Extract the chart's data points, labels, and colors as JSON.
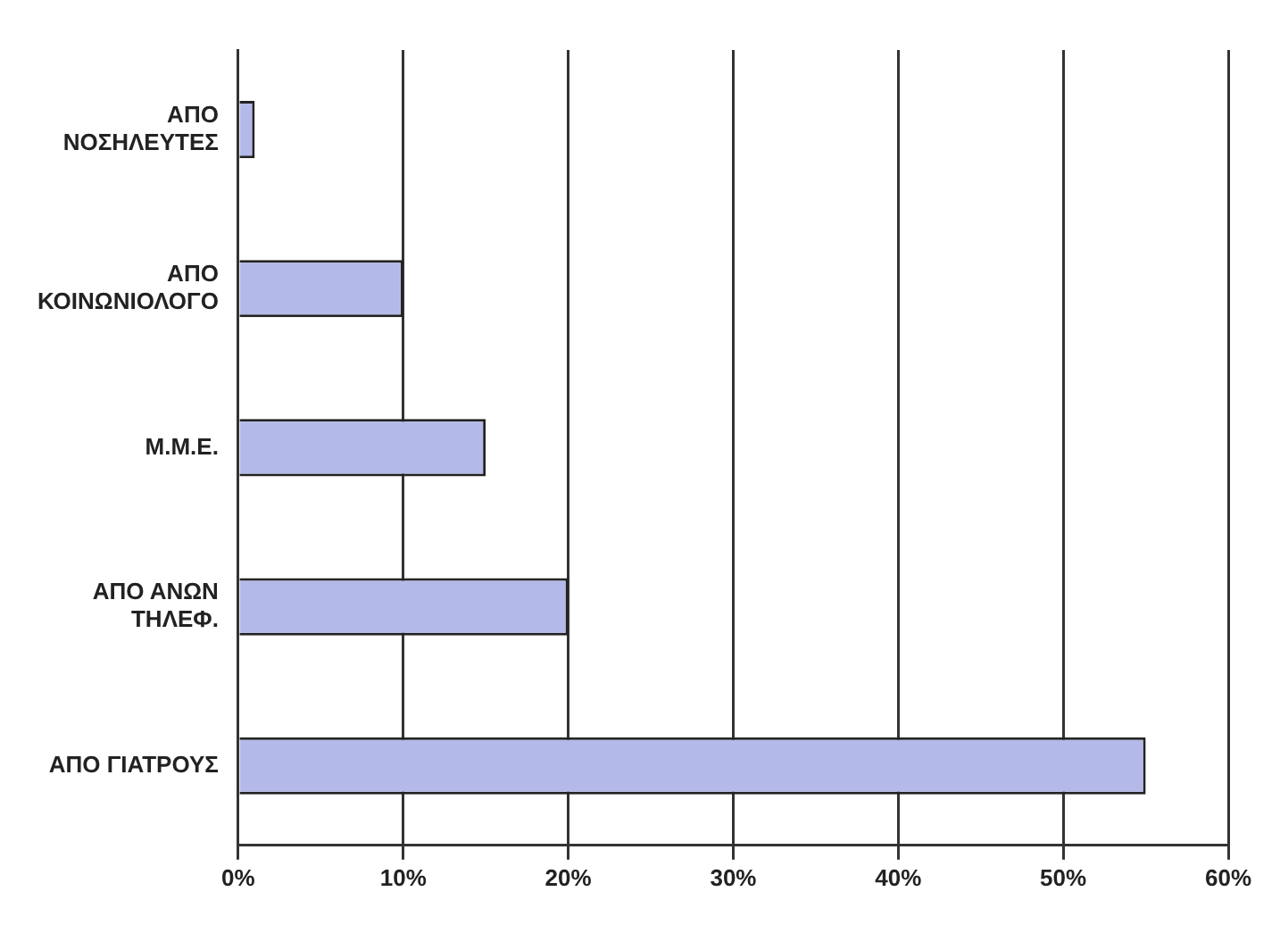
{
  "chart_data": {
    "type": "bar",
    "orientation": "horizontal",
    "categories": [
      "ΑΠΟ\nΝΟΣΗΛΕΥΤΕΣ",
      "ΑΠΟ\nΚΟΙΝΩΝΙΟΛΟΓΟ",
      "Μ.Μ.Ε.",
      "ΑΠΟ ΑΝΩΝ\nΤΗΛΕΦ.",
      "ΑΠΟ ΓΙΑΤΡΟΥΣ"
    ],
    "values": [
      1,
      10,
      15,
      20,
      55
    ],
    "color": "#b3b9e8",
    "xlim": [
      0,
      60
    ],
    "xticks": [
      {
        "value": 0,
        "label": "0%"
      },
      {
        "value": 10,
        "label": "10%"
      },
      {
        "value": 20,
        "label": "20%"
      },
      {
        "value": 30,
        "label": "30%"
      },
      {
        "value": 40,
        "label": "40%"
      },
      {
        "value": 50,
        "label": "50%"
      },
      {
        "value": 60,
        "label": "60%"
      }
    ],
    "grid": "x",
    "legend": false
  }
}
